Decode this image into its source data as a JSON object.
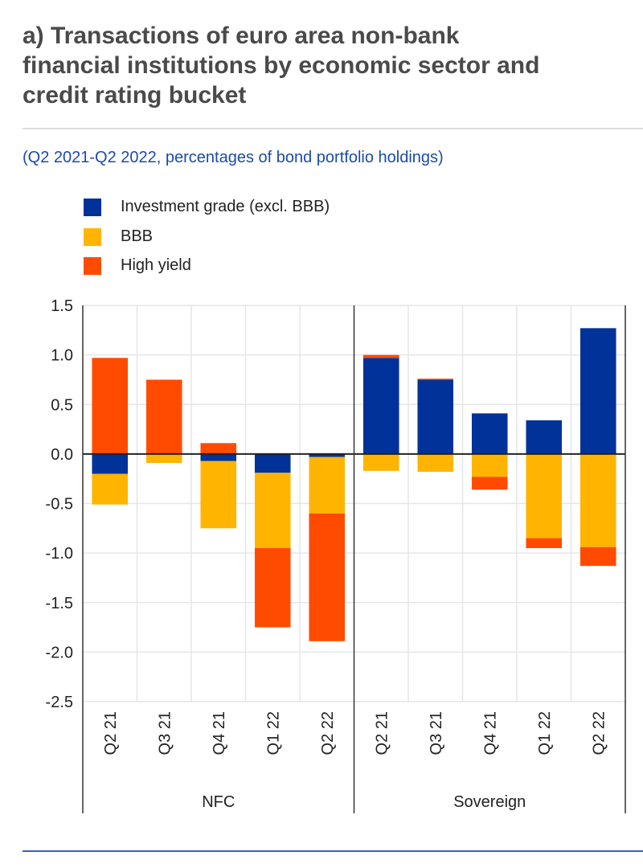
{
  "title": "a) Transactions of euro area non-bank financial institutions by economic sector and credit rating bucket",
  "title_lines": [
    "a) Transactions of euro area non-bank",
    "financial institutions by economic sector and",
    "credit rating bucket"
  ],
  "subtitle": "(Q2 2021-Q2 2022, percentages of bond portfolio holdings)",
  "colors": {
    "ig": "#003299",
    "bbb": "#ffb400",
    "hy": "#ff4b00"
  },
  "chart_data": {
    "type": "bar",
    "stacked": true,
    "title": "Transactions of euro area non-bank financial institutions by economic sector and credit rating bucket",
    "ylabel": "percentages of bond portfolio holdings",
    "ylim": [
      -2.5,
      1.5
    ],
    "yticks": [
      "1.5",
      "1.0",
      "0.5",
      "0.0",
      "-0.5",
      "-1.0",
      "-1.5",
      "-2.0",
      "-2.5"
    ],
    "ytick_values": [
      1.5,
      1.0,
      0.5,
      0.0,
      -0.5,
      -1.0,
      -1.5,
      -2.0,
      -2.5
    ],
    "legend_position": "top-left",
    "grid": true,
    "groups": [
      "NFC",
      "Sovereign"
    ],
    "categories": [
      "Q2 21",
      "Q3 21",
      "Q4 21",
      "Q1 22",
      "Q2 22",
      "Q2 21",
      "Q3 21",
      "Q4 21",
      "Q1 22",
      "Q2 22"
    ],
    "series": [
      {
        "name": "Investment grade (excl. BBB)",
        "key": "ig",
        "values": [
          -0.2,
          0.0,
          -0.07,
          -0.19,
          -0.03,
          0.97,
          0.75,
          0.41,
          0.34,
          1.27
        ]
      },
      {
        "name": "BBB",
        "key": "bbb",
        "values": [
          -0.31,
          -0.09,
          -0.68,
          -0.76,
          -0.57,
          -0.17,
          -0.18,
          -0.23,
          -0.85,
          -0.94
        ]
      },
      {
        "name": "High yield",
        "key": "hy",
        "values": [
          0.97,
          0.75,
          0.11,
          -0.8,
          -1.29,
          0.03,
          0.01,
          -0.13,
          -0.1,
          -0.19
        ]
      }
    ]
  }
}
